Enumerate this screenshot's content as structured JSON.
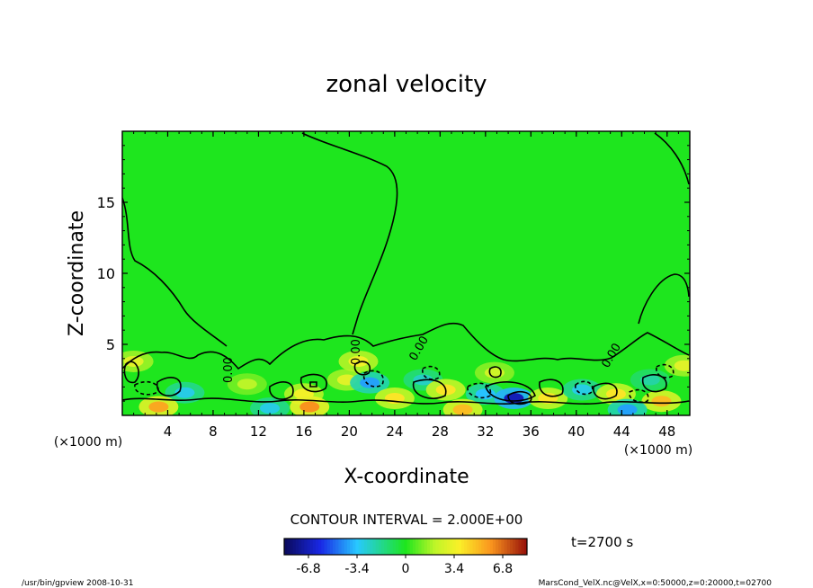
{
  "chart_data": {
    "type": "heatmap",
    "title": "zonal velocity",
    "xlabel": "X-coordinate",
    "ylabel": "Z-coordinate",
    "x_unit": "(×1000 m)",
    "y_unit": "(×1000 m)",
    "xlim": [
      0,
      50
    ],
    "ylim": [
      0,
      20
    ],
    "x_ticks": [
      "4",
      "8",
      "12",
      "16",
      "20",
      "24",
      "28",
      "32",
      "36",
      "40",
      "44",
      "48"
    ],
    "y_ticks": [
      "5",
      "10",
      "15"
    ],
    "contour_interval": "CONTOUR INTERVAL = 2.000E+00",
    "contour_labels": [
      "0.00",
      "0.00",
      "0.00",
      "0.00"
    ],
    "time": "t=2700 s",
    "colorbar": {
      "range": [
        -8.5,
        8.5
      ],
      "tick_labels": [
        "-6.8",
        "-3.4",
        "0",
        "3.4",
        "6.8"
      ],
      "tick_values": [
        -6.8,
        -3.4,
        0,
        3.4,
        6.8
      ]
    },
    "background_value": 0.0,
    "features": [
      {
        "x": 1.0,
        "z": 3.8,
        "v": 3.0
      },
      {
        "x": 5.5,
        "z": 1.6,
        "v": -3.0
      },
      {
        "x": 3.2,
        "z": 0.6,
        "v": 5.5
      },
      {
        "x": 11.0,
        "z": 2.2,
        "v": 2.0
      },
      {
        "x": 16.0,
        "z": 1.5,
        "v": 3.5
      },
      {
        "x": 16.5,
        "z": 0.6,
        "v": 6.0
      },
      {
        "x": 19.8,
        "z": 2.5,
        "v": 3.0
      },
      {
        "x": 20.8,
        "z": 3.8,
        "v": 3.5
      },
      {
        "x": 21.8,
        "z": 2.3,
        "v": -4.0
      },
      {
        "x": 24.0,
        "z": 1.2,
        "v": 4.0
      },
      {
        "x": 26.5,
        "z": 2.5,
        "v": -2.5
      },
      {
        "x": 28.5,
        "z": 1.8,
        "v": 4.0
      },
      {
        "x": 32.0,
        "z": 1.5,
        "v": -3.5
      },
      {
        "x": 34.5,
        "z": 1.2,
        "v": -6.8
      },
      {
        "x": 32.8,
        "z": 3.0,
        "v": 2.5
      },
      {
        "x": 37.5,
        "z": 1.2,
        "v": 4.0
      },
      {
        "x": 40.5,
        "z": 1.8,
        "v": -3.0
      },
      {
        "x": 43.5,
        "z": 1.5,
        "v": 4.0
      },
      {
        "x": 46.5,
        "z": 2.5,
        "v": -2.0
      },
      {
        "x": 47.5,
        "z": 1.0,
        "v": 5.0
      },
      {
        "x": 49.5,
        "z": 3.5,
        "v": 3.0
      },
      {
        "x": 13.0,
        "z": 0.5,
        "v": -3.0
      },
      {
        "x": 30.0,
        "z": 0.4,
        "v": 5.0
      },
      {
        "x": 44.5,
        "z": 0.4,
        "v": -4.0
      }
    ]
  },
  "footer": {
    "left": "/usr/bin/gpview   2008-10-31",
    "right": "MarsCond_VelX.nc@VelX,x=0:50000,z=0:20000,t=02700"
  }
}
